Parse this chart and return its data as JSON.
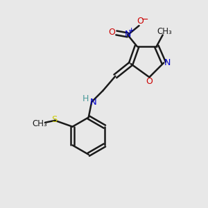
{
  "bg_color": "#e8e8e8",
  "bond_color": "#1a1a1a",
  "N_color": "#0000cc",
  "O_color": "#cc0000",
  "S_color": "#cccc00",
  "H_color": "#4a9a9a",
  "figsize": [
    3.0,
    3.0
  ],
  "dpi": 100,
  "xlim": [
    0,
    10
  ],
  "ylim": [
    0,
    10
  ]
}
